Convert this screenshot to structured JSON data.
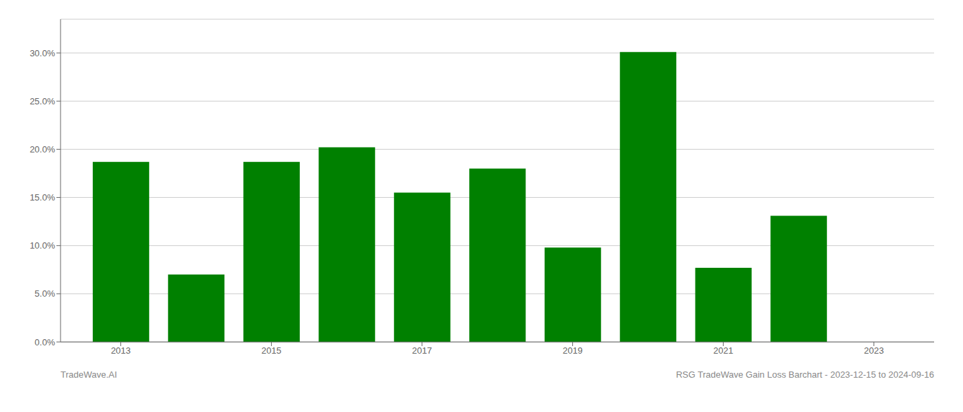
{
  "chart_data": {
    "type": "bar",
    "x": [
      2013,
      2014,
      2015,
      2016,
      2017,
      2018,
      2019,
      2020,
      2021,
      2022
    ],
    "values": [
      0.187,
      0.07,
      0.187,
      0.202,
      0.155,
      0.18,
      0.098,
      0.301,
      0.077,
      0.131
    ],
    "color": "#008000",
    "xlim": [
      2012.2,
      2023.8
    ],
    "xticks": [
      2013,
      2015,
      2017,
      2019,
      2021,
      2023
    ],
    "ylim": [
      0,
      0.335
    ],
    "yticks": [
      {
        "value": 0.0,
        "label": "0.0%"
      },
      {
        "value": 0.05,
        "label": "5.0%"
      },
      {
        "value": 0.1,
        "label": "10.0%"
      },
      {
        "value": 0.15,
        "label": "15.0%"
      },
      {
        "value": 0.2,
        "label": "20.0%"
      },
      {
        "value": 0.25,
        "label": "25.0%"
      },
      {
        "value": 0.3,
        "label": "30.0%"
      }
    ],
    "grid": "y",
    "annotations": [
      "TradeWave.AI",
      "RSG TradeWave Gain Loss Barchart - 2023-12-15 to 2024-09-16"
    ]
  }
}
